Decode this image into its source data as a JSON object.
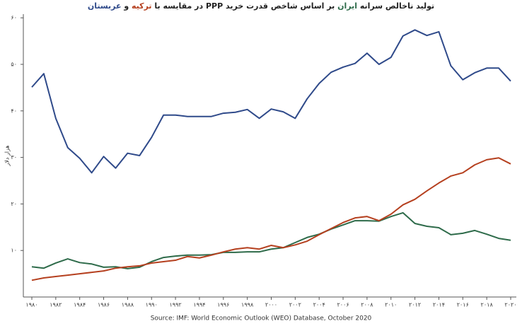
{
  "chart_data": {
    "type": "line",
    "title": [
      "تولید ناخالص سرانه ",
      "ایران",
      " بر اساس شاخص قدرت خرید PPP در مقایسه با ",
      "ترکیه",
      " و ",
      "عربستان"
    ],
    "y_label": "هزار دلار",
    "source": "Source: IMF: World Economic Outlook (WEO) Database, October 2020",
    "x": [
      1980,
      1981,
      1982,
      1983,
      1984,
      1985,
      1986,
      1987,
      1988,
      1989,
      1990,
      1991,
      1992,
      1993,
      1994,
      1995,
      1996,
      1997,
      1998,
      1999,
      2000,
      2001,
      2002,
      2003,
      2004,
      2005,
      2006,
      2007,
      2008,
      2009,
      2010,
      2011,
      2012,
      2013,
      2014,
      2015,
      2016,
      2017,
      2018,
      2019,
      2020
    ],
    "series": [
      {
        "color": "#2f4a8a",
        "values": [
          45.1,
          48.0,
          38.4,
          32.1,
          29.8,
          26.7,
          30.2,
          27.7,
          30.9,
          30.4,
          34.3,
          39.1,
          39.1,
          38.8,
          38.8,
          38.8,
          39.5,
          39.7,
          40.3,
          38.4,
          40.4,
          39.8,
          38.4,
          42.6,
          45.9,
          48.3,
          49.4,
          50.2,
          52.4,
          50.0,
          51.5,
          56.1,
          57.4,
          56.2,
          57.0,
          49.7,
          46.7,
          48.2,
          49.2,
          49.2,
          46.4
        ]
      },
      {
        "color": "#2e6b4a",
        "values": [
          6.5,
          6.2,
          7.3,
          8.2,
          7.4,
          7.1,
          6.4,
          6.5,
          6.1,
          6.4,
          7.6,
          8.5,
          8.8,
          9.0,
          9.0,
          9.1,
          9.6,
          9.6,
          9.7,
          9.7,
          10.3,
          10.6,
          11.7,
          12.8,
          13.5,
          14.6,
          15.5,
          16.4,
          16.4,
          16.3,
          17.3,
          18.1,
          15.8,
          15.2,
          14.9,
          13.4,
          13.7,
          14.3,
          13.5,
          12.6,
          12.2
        ]
      },
      {
        "color": "#b5401f",
        "values": [
          3.6,
          4.1,
          4.4,
          4.7,
          5.0,
          5.3,
          5.6,
          6.2,
          6.5,
          6.7,
          7.3,
          7.6,
          7.9,
          8.7,
          8.4,
          9.0,
          9.7,
          10.3,
          10.6,
          10.3,
          11.1,
          10.6,
          11.2,
          12.0,
          13.4,
          14.7,
          16.0,
          17.0,
          17.3,
          16.4,
          17.8,
          19.8,
          21.0,
          22.8,
          24.5,
          26.0,
          26.7,
          28.4,
          29.5,
          29.9,
          28.6
        ]
      }
    ],
    "xlim": [
      1980,
      2020
    ],
    "xticks": [
      {
        "value": 1980,
        "label": "۱۹۸۰"
      },
      {
        "value": 1982,
        "label": "۱۹۸۲"
      },
      {
        "value": 1984,
        "label": "۱۹۸۴"
      },
      {
        "value": 1986,
        "label": "۱۹۸۶"
      },
      {
        "value": 1988,
        "label": "۱۹۸۸"
      },
      {
        "value": 1990,
        "label": "۱۹۹۰"
      },
      {
        "value": 1992,
        "label": "۱۹۹۲"
      },
      {
        "value": 1994,
        "label": "۱۹۹۴"
      },
      {
        "value": 1996,
        "label": "۱۹۹۶"
      },
      {
        "value": 1998,
        "label": "۱۹۹۸"
      },
      {
        "value": 2000,
        "label": "۲۰۰۰"
      },
      {
        "value": 2002,
        "label": "۲۰۰۲"
      },
      {
        "value": 2004,
        "label": "۲۰۰۴"
      },
      {
        "value": 2006,
        "label": "۲۰۰۶"
      },
      {
        "value": 2008,
        "label": "۲۰۰۸"
      },
      {
        "value": 2010,
        "label": "۲۰۱۰"
      },
      {
        "value": 2012,
        "label": "۲۰۱۲"
      },
      {
        "value": 2014,
        "label": "۲۰۱۴"
      },
      {
        "value": 2016,
        "label": "۲۰۱۶"
      },
      {
        "value": 2018,
        "label": "۲۰۱۸"
      },
      {
        "value": 2020,
        "label": "۲۰۲۰"
      }
    ],
    "ylim": [
      0,
      60
    ],
    "yticks": [
      {
        "value": 10,
        "label": "۱۰"
      },
      {
        "value": 20,
        "label": "۲۰"
      },
      {
        "value": 30,
        "label": "۳۰"
      },
      {
        "value": 40,
        "label": "۴۰"
      },
      {
        "value": 50,
        "label": "۵۰"
      },
      {
        "value": 60,
        "label": "۶۰"
      }
    ],
    "grid": false
  }
}
